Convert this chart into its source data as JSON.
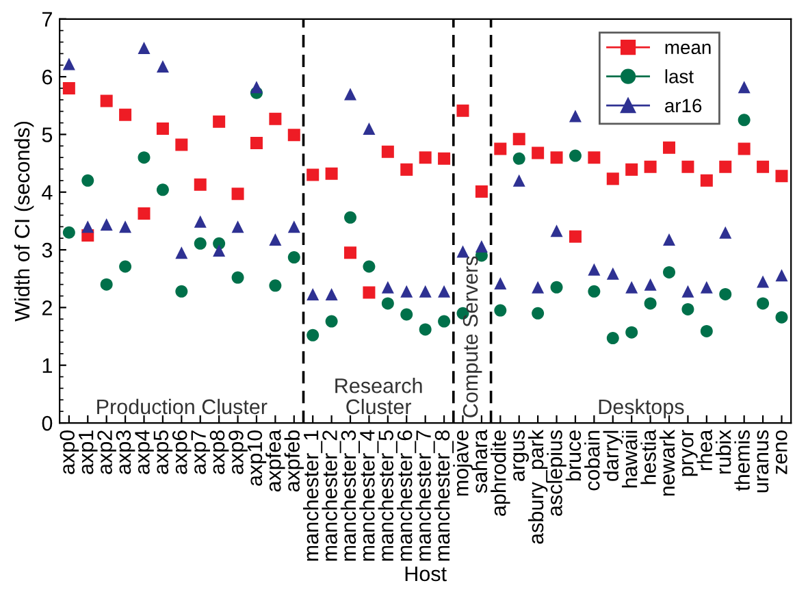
{
  "chart_data": {
    "type": "scatter",
    "xlabel": "Host",
    "ylabel": "Width of CI (seconds)",
    "categories": [
      "axp0",
      "axp1",
      "axp2",
      "axp3",
      "axp4",
      "axp5",
      "axp6",
      "axp7",
      "axp8",
      "axp9",
      "axp10",
      "axpfea",
      "axpfeb",
      "manchester_1",
      "manchester_2",
      "manchester_3",
      "manchester_4",
      "manchester_5",
      "manchester_6",
      "manchester_7",
      "manchester_8",
      "mojave",
      "sahara",
      "aphrodite",
      "argus",
      "asbury_park",
      "asclepius",
      "bruce",
      "cobain",
      "darryl",
      "hawaii",
      "hestia",
      "newark",
      "pryor",
      "rhea",
      "rubix",
      "themis",
      "uranus",
      "zeno"
    ],
    "series": [
      {
        "name": "mean",
        "color": "#ee1c25",
        "marker": "square",
        "values": [
          5.8,
          3.25,
          5.58,
          5.34,
          3.63,
          5.1,
          4.82,
          4.13,
          5.22,
          3.97,
          4.85,
          5.27,
          4.99,
          4.3,
          4.32,
          2.95,
          2.26,
          4.7,
          4.39,
          4.6,
          4.58,
          5.41,
          4.01,
          4.75,
          4.92,
          4.68,
          4.6,
          3.23,
          4.6,
          4.23,
          4.39,
          4.44,
          4.77,
          4.44,
          4.2,
          4.44,
          4.75,
          4.44,
          4.28
        ]
      },
      {
        "name": "last",
        "color": "#00704a",
        "marker": "circle",
        "values": [
          3.3,
          4.2,
          2.4,
          2.71,
          4.6,
          4.04,
          2.28,
          3.11,
          3.11,
          2.52,
          5.72,
          2.38,
          2.87,
          1.52,
          1.76,
          3.56,
          2.71,
          2.07,
          1.88,
          1.62,
          1.76,
          1.9,
          2.9,
          1.95,
          4.58,
          1.9,
          2.35,
          4.63,
          2.28,
          1.47,
          1.57,
          2.07,
          2.61,
          1.97,
          1.59,
          2.23,
          5.25,
          2.07,
          1.83
        ]
      },
      {
        "name": "ar16",
        "color": "#2e3192",
        "marker": "triangle",
        "values": [
          6.22,
          3.4,
          3.44,
          3.4,
          6.5,
          6.18,
          2.95,
          3.49,
          2.99,
          3.4,
          5.82,
          3.18,
          3.4,
          2.23,
          2.23,
          5.7,
          5.1,
          2.35,
          2.28,
          2.28,
          2.28,
          2.97,
          3.06,
          2.42,
          4.2,
          2.35,
          3.33,
          5.32,
          2.66,
          2.59,
          2.35,
          2.4,
          3.18,
          2.28,
          2.35,
          3.3,
          5.82,
          2.45,
          2.56
        ]
      }
    ],
    "ylim": [
      0,
      7
    ],
    "yticks": [
      0,
      1,
      2,
      3,
      4,
      5,
      6,
      7
    ],
    "annotations": [
      "Production Cluster",
      "Research\nCluster",
      "Compute Servers",
      "Desktops"
    ],
    "grid": false,
    "legend": "top right"
  }
}
